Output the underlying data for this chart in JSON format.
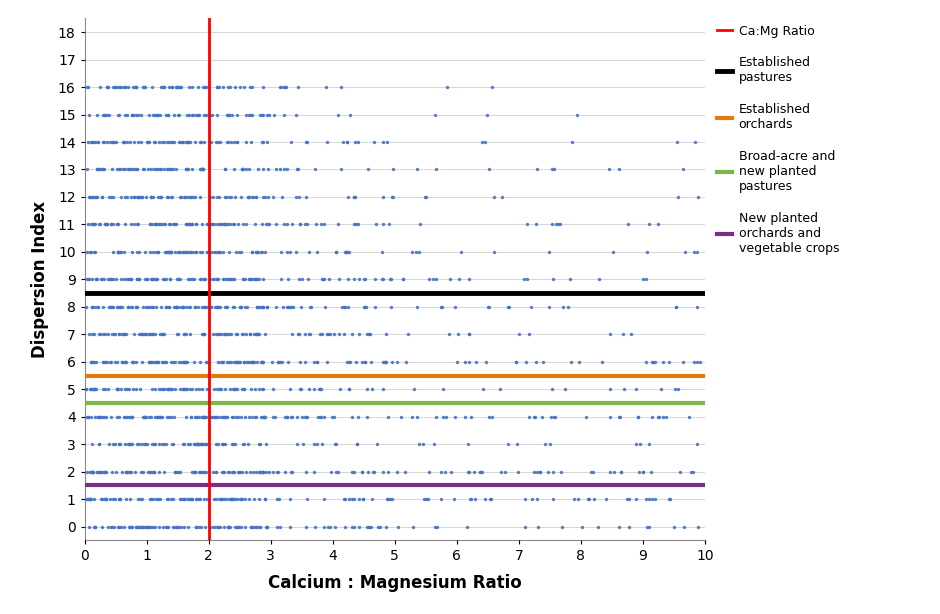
{
  "title": "",
  "xlabel": "Calcium : Magnesium Ratio",
  "ylabel": "Dispersion Index",
  "xlim": [
    0,
    10
  ],
  "ylim": [
    -0.5,
    18.5
  ],
  "yticks": [
    0,
    1,
    2,
    3,
    4,
    5,
    6,
    7,
    8,
    9,
    10,
    11,
    12,
    13,
    14,
    15,
    16,
    17,
    18
  ],
  "xticks": [
    0,
    1,
    2,
    3,
    4,
    5,
    6,
    7,
    8,
    9,
    10
  ],
  "vertical_line_x": 2.0,
  "vertical_line_color": "#ff0000",
  "hlines": [
    {
      "y": 8.5,
      "color": "#000000",
      "lw": 3.5,
      "label": "Established\npastures"
    },
    {
      "y": 5.5,
      "color": "#e07b10",
      "lw": 3.0,
      "label": "Established\norchards"
    },
    {
      "y": 4.5,
      "color": "#7ab648",
      "lw": 3.0,
      "label": "Broad-acre and\nnew planted\npastures"
    },
    {
      "y": 1.5,
      "color": "#7b2d8b",
      "lw": 3.0,
      "label": "New planted\norchards and\nvegetable crops"
    }
  ],
  "scatter_color": "#4472c4",
  "scatter_size": 6,
  "scatter_alpha": 0.9,
  "background_color": "#ffffff",
  "grid_color": "#d0d0d0",
  "font_size_label": 12,
  "font_size_tick": 10,
  "font_size_legend": 9,
  "legend_labels": [
    "Ca:Mg Ratio",
    "Established\npastures",
    "Established\norchards",
    "Broad-acre and\nnew planted\npastures",
    "New planted\norchards and\nvegetable crops"
  ]
}
